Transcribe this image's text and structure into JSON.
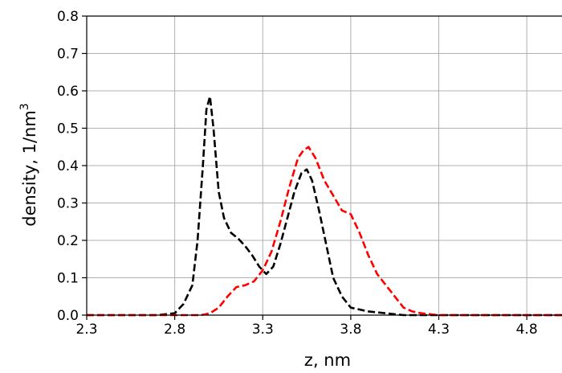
{
  "chart_data": {
    "type": "line",
    "xlabel": "z, nm",
    "ylabel_main": "density, 1/nm",
    "ylabel_sup": "3",
    "xlim": [
      2.3,
      5.0
    ],
    "ylim": [
      0.0,
      0.8
    ],
    "xticks": [
      "2.3",
      "2.8",
      "3.3",
      "3.8",
      "4.3",
      "4.8"
    ],
    "yticks": [
      "0.0",
      "0.1",
      "0.2",
      "0.3",
      "0.4",
      "0.5",
      "0.6",
      "0.7",
      "0.8"
    ],
    "grid": true,
    "series": [
      {
        "color": "#000000",
        "style": "dashed",
        "x": [
          2.3,
          2.7,
          2.8,
          2.85,
          2.9,
          2.93,
          2.96,
          2.98,
          3.0,
          3.02,
          3.05,
          3.08,
          3.12,
          3.16,
          3.2,
          3.24,
          3.28,
          3.32,
          3.36,
          3.4,
          3.44,
          3.48,
          3.52,
          3.55,
          3.58,
          3.62,
          3.66,
          3.7,
          3.75,
          3.8,
          3.9,
          4.0,
          4.1,
          4.2,
          5.0
        ],
        "y": [
          0.0,
          0.0,
          0.005,
          0.03,
          0.08,
          0.2,
          0.4,
          0.55,
          0.585,
          0.5,
          0.33,
          0.26,
          0.22,
          0.205,
          0.185,
          0.16,
          0.13,
          0.11,
          0.13,
          0.19,
          0.26,
          0.33,
          0.38,
          0.39,
          0.36,
          0.28,
          0.19,
          0.1,
          0.05,
          0.02,
          0.01,
          0.005,
          0.0,
          0.0,
          0.0
        ]
      },
      {
        "color": "#ff0000",
        "style": "dashed",
        "x": [
          2.3,
          2.95,
          3.0,
          3.05,
          3.1,
          3.15,
          3.2,
          3.25,
          3.3,
          3.35,
          3.4,
          3.45,
          3.5,
          3.53,
          3.56,
          3.6,
          3.65,
          3.7,
          3.75,
          3.8,
          3.85,
          3.9,
          3.95,
          4.0,
          4.05,
          4.1,
          4.15,
          4.2,
          4.3,
          5.0
        ],
        "y": [
          0.0,
          0.0,
          0.005,
          0.02,
          0.05,
          0.075,
          0.08,
          0.09,
          0.12,
          0.17,
          0.25,
          0.34,
          0.42,
          0.44,
          0.45,
          0.42,
          0.36,
          0.32,
          0.28,
          0.27,
          0.22,
          0.16,
          0.11,
          0.08,
          0.05,
          0.02,
          0.01,
          0.005,
          0.0,
          0.0
        ]
      }
    ]
  }
}
